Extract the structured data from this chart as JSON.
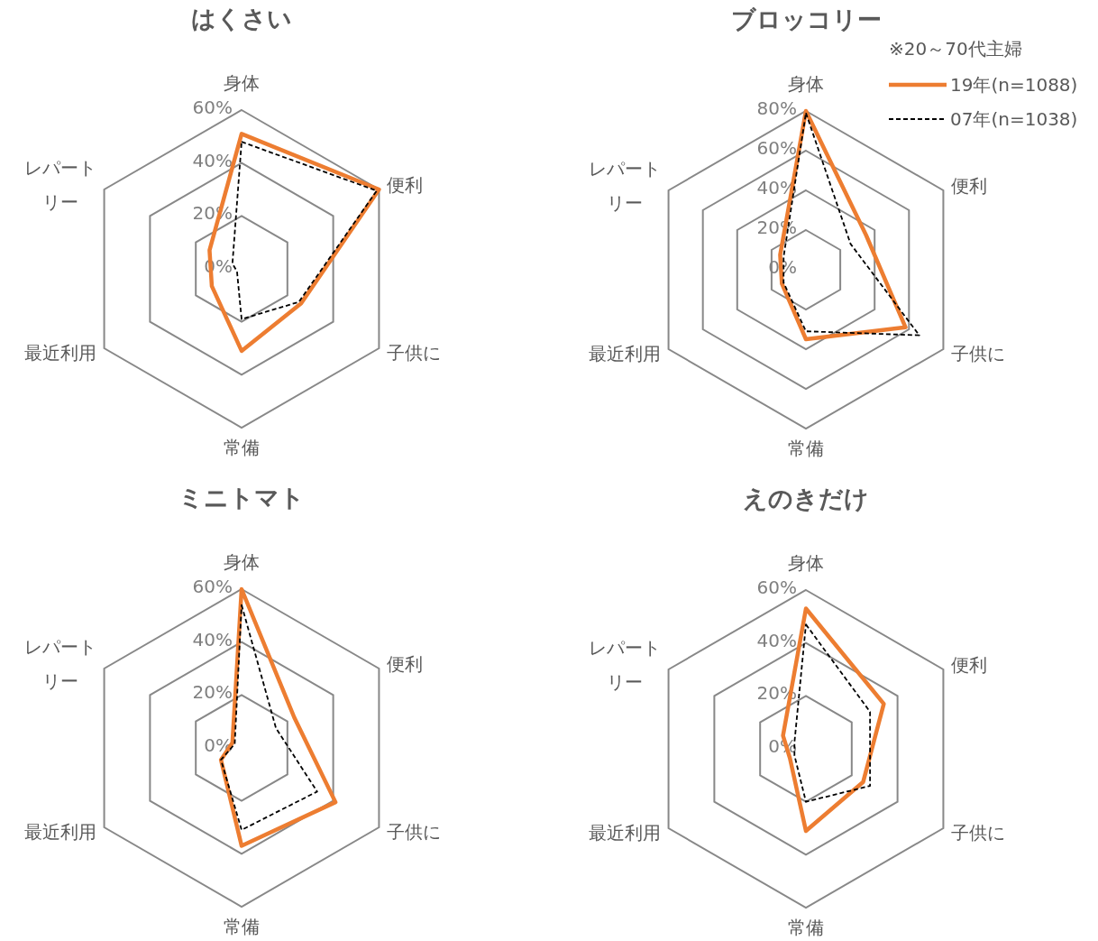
{
  "chart_data": [
    {
      "type": "radar",
      "title": "はくさい",
      "categories": [
        "身体",
        "便利",
        "子供に",
        "常備",
        "最近利用",
        "レパートリー"
      ],
      "ylim": [
        0,
        60
      ],
      "yticks": [
        {
          "value": 0,
          "label": "0%"
        },
        {
          "value": 20,
          "label": "20%"
        },
        {
          "value": 40,
          "label": "40%"
        },
        {
          "value": 60,
          "label": "60%"
        }
      ],
      "grid": true,
      "series": [
        {
          "color": "#ed7d31",
          "line_style": "solid",
          "values": [
            51,
            60,
            26,
            31,
            13,
            14
          ]
        },
        {
          "color": "#000000",
          "line_style": "dashed",
          "values": [
            48,
            59,
            25,
            19,
            2,
            4
          ]
        }
      ]
    },
    {
      "type": "radar",
      "title": "ブロッコリー",
      "categories": [
        "身体",
        "便利",
        "子供に",
        "常備",
        "最近利用",
        "レパートリー"
      ],
      "ylim": [
        0,
        80
      ],
      "yticks": [
        {
          "value": 0,
          "label": "0%"
        },
        {
          "value": 20,
          "label": "20%"
        },
        {
          "value": 40,
          "label": "40%"
        },
        {
          "value": 60,
          "label": "60%"
        },
        {
          "value": 80,
          "label": "80%"
        }
      ],
      "grid": true,
      "legend": "top right",
      "annotations": [
        "※20～70代主婦"
      ],
      "series": [
        {
          "name": "19年(n=1088)",
          "color": "#ed7d31",
          "line_style": "solid",
          "values": [
            80,
            35,
            58,
            35,
            14,
            15
          ]
        },
        {
          "name": "07年(n=1038)",
          "color": "#000000",
          "line_style": "dashed",
          "values": [
            79,
            26,
            66,
            31,
            13,
            13
          ]
        }
      ]
    },
    {
      "type": "radar",
      "title": "ミニトマト",
      "categories": [
        "身体",
        "便利",
        "子供に",
        "常備",
        "最近利用",
        "レパートリー"
      ],
      "ylim": [
        0,
        60
      ],
      "yticks": [
        {
          "value": 0,
          "label": "0%"
        },
        {
          "value": 20,
          "label": "20%"
        },
        {
          "value": 40,
          "label": "40%"
        },
        {
          "value": 60,
          "label": "60%"
        }
      ],
      "grid": true,
      "series": [
        {
          "color": "#ed7d31",
          "line_style": "solid",
          "values": [
            60,
            23,
            41,
            37,
            9,
            4
          ]
        },
        {
          "color": "#000000",
          "line_style": "dashed",
          "values": [
            54,
            15,
            33,
            31,
            9,
            3
          ]
        }
      ]
    },
    {
      "type": "radar",
      "title": "えのきだけ",
      "categories": [
        "身体",
        "便利",
        "子供に",
        "常備",
        "最近利用",
        "レパートリー"
      ],
      "ylim": [
        0,
        60
      ],
      "yticks": [
        {
          "value": 0,
          "label": "0%"
        },
        {
          "value": 20,
          "label": "20%"
        },
        {
          "value": 40,
          "label": "40%"
        },
        {
          "value": 60,
          "label": "60%"
        }
      ],
      "grid": true,
      "series": [
        {
          "color": "#ed7d31",
          "line_style": "solid",
          "values": [
            53,
            34,
            25,
            31,
            7,
            10
          ]
        },
        {
          "color": "#000000",
          "line_style": "dashed",
          "values": [
            47,
            28,
            28,
            20,
            5,
            5
          ]
        }
      ]
    }
  ]
}
